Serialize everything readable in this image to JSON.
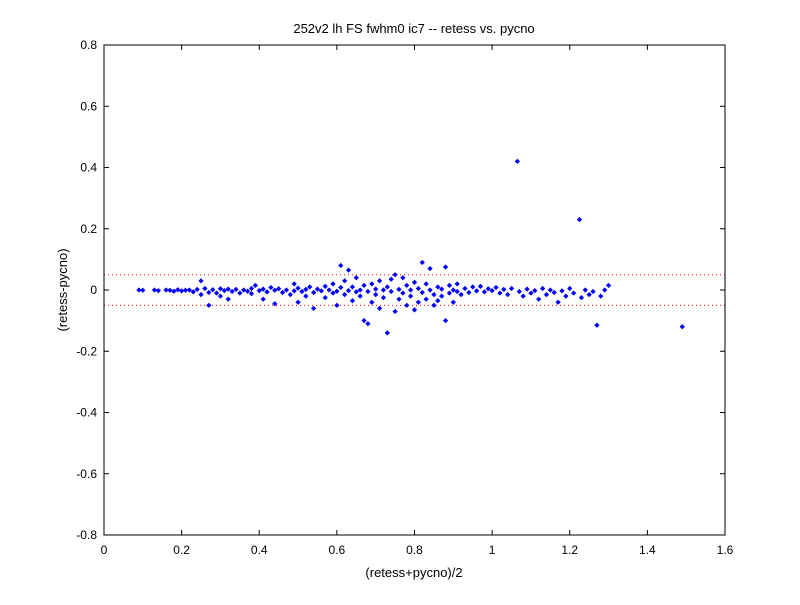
{
  "chart_data": {
    "type": "scatter",
    "title": "252v2 lh FS fwhm0 ic7 -- retess vs. pycno",
    "xlabel": "(retess+pycno)/2",
    "ylabel": "(retess-pycno)",
    "xlim": [
      0,
      1.6
    ],
    "ylim": [
      -0.8,
      0.8
    ],
    "x_ticks": [
      0,
      0.2,
      0.4,
      0.6,
      0.8,
      1,
      1.2,
      1.4,
      1.6
    ],
    "y_ticks": [
      -0.8,
      -0.6,
      -0.4,
      -0.2,
      0,
      0.2,
      0.4,
      0.6,
      0.8
    ],
    "x_tick_labels": [
      "0",
      "0.2",
      "0.4",
      "0.6",
      "0.8",
      "1",
      "1.2",
      "1.4",
      "1.6"
    ],
    "y_tick_labels": [
      "-0.8",
      "-0.6",
      "-0.4",
      "-0.2",
      "0",
      "0.2",
      "0.4",
      "0.6",
      "0.8"
    ],
    "grid": false,
    "legend": "none",
    "marker_color": "#0000ff",
    "reference_line_color": "#ff0000",
    "reference_lines_y": [
      0.05,
      -0.05
    ],
    "series": [
      {
        "points": [
          [
            0.09,
            0.0
          ],
          [
            0.1,
            -0.001
          ],
          [
            0.13,
            0.0
          ],
          [
            0.14,
            -0.002
          ],
          [
            0.16,
            0.0
          ],
          [
            0.17,
            -0.001
          ],
          [
            0.18,
            -0.004
          ],
          [
            0.19,
            0.001
          ],
          [
            0.2,
            -0.003
          ],
          [
            0.21,
            -0.001
          ],
          [
            0.22,
            0.0
          ],
          [
            0.23,
            -0.006
          ],
          [
            0.24,
            0.002
          ],
          [
            0.25,
            0.03
          ],
          [
            0.25,
            -0.015
          ],
          [
            0.26,
            0.005
          ],
          [
            0.27,
            -0.008
          ],
          [
            0.27,
            -0.05
          ],
          [
            0.28,
            0.001
          ],
          [
            0.29,
            -0.01
          ],
          [
            0.3,
            0.004
          ],
          [
            0.3,
            -0.02
          ],
          [
            0.31,
            -0.002
          ],
          [
            0.32,
            0.003
          ],
          [
            0.32,
            -0.03
          ],
          [
            0.33,
            -0.005
          ],
          [
            0.34,
            0.002
          ],
          [
            0.35,
            -0.01
          ],
          [
            0.36,
            0.0
          ],
          [
            0.37,
            -0.004
          ],
          [
            0.38,
            0.005
          ],
          [
            0.38,
            -0.012
          ],
          [
            0.39,
            0.015
          ],
          [
            0.4,
            -0.002
          ],
          [
            0.41,
            0.003
          ],
          [
            0.41,
            -0.03
          ],
          [
            0.42,
            -0.006
          ],
          [
            0.43,
            0.008
          ],
          [
            0.44,
            -0.001
          ],
          [
            0.44,
            -0.045
          ],
          [
            0.45,
            0.004
          ],
          [
            0.46,
            -0.008
          ],
          [
            0.47,
            0.0
          ],
          [
            0.48,
            -0.015
          ],
          [
            0.49,
            0.02
          ],
          [
            0.49,
            -0.003
          ],
          [
            0.5,
            0.006
          ],
          [
            0.5,
            -0.04
          ],
          [
            0.51,
            -0.005
          ],
          [
            0.52,
            0.002
          ],
          [
            0.52,
            -0.02
          ],
          [
            0.53,
            0.01
          ],
          [
            0.54,
            -0.008
          ],
          [
            0.54,
            -0.06
          ],
          [
            0.55,
            0.003
          ],
          [
            0.56,
            -0.003
          ],
          [
            0.57,
            0.012
          ],
          [
            0.57,
            -0.025
          ],
          [
            0.58,
            0.0
          ],
          [
            0.59,
            -0.01
          ],
          [
            0.59,
            0.02
          ],
          [
            0.6,
            -0.004
          ],
          [
            0.6,
            -0.05
          ],
          [
            0.61,
            0.08
          ],
          [
            0.61,
            0.008
          ],
          [
            0.62,
            -0.015
          ],
          [
            0.62,
            0.03
          ],
          [
            0.63,
            0.065
          ],
          [
            0.63,
            -0.002
          ],
          [
            0.64,
            0.01
          ],
          [
            0.64,
            -0.035
          ],
          [
            0.65,
            -0.006
          ],
          [
            0.65,
            0.04
          ],
          [
            0.66,
            0.0
          ],
          [
            0.66,
            -0.02
          ],
          [
            0.67,
            -0.1
          ],
          [
            0.67,
            0.015
          ],
          [
            0.68,
            -0.11
          ],
          [
            0.68,
            -0.005
          ],
          [
            0.69,
            0.02
          ],
          [
            0.69,
            -0.04
          ],
          [
            0.7,
            0.003
          ],
          [
            0.7,
            -0.015
          ],
          [
            0.71,
            0.03
          ],
          [
            0.71,
            -0.06
          ],
          [
            0.72,
            0.0
          ],
          [
            0.72,
            -0.025
          ],
          [
            0.73,
            0.01
          ],
          [
            0.73,
            -0.14
          ],
          [
            0.74,
            -0.005
          ],
          [
            0.74,
            0.035
          ],
          [
            0.75,
            0.05
          ],
          [
            0.75,
            -0.07
          ],
          [
            0.76,
            0.002
          ],
          [
            0.76,
            -0.03
          ],
          [
            0.77,
            0.04
          ],
          [
            0.77,
            -0.01
          ],
          [
            0.78,
            0.015
          ],
          [
            0.78,
            -0.05
          ],
          [
            0.79,
            0.0
          ],
          [
            0.79,
            -0.02
          ],
          [
            0.8,
            0.025
          ],
          [
            0.8,
            -0.065
          ],
          [
            0.81,
            0.005
          ],
          [
            0.81,
            -0.04
          ],
          [
            0.82,
            0.09
          ],
          [
            0.82,
            -0.008
          ],
          [
            0.83,
            0.02
          ],
          [
            0.83,
            -0.03
          ],
          [
            0.84,
            0.07
          ],
          [
            0.84,
            0.0
          ],
          [
            0.85,
            -0.015
          ],
          [
            0.85,
            -0.05
          ],
          [
            0.86,
            0.01
          ],
          [
            0.86,
            -0.035
          ],
          [
            0.87,
            0.003
          ],
          [
            0.87,
            -0.02
          ],
          [
            0.88,
            0.075
          ],
          [
            0.88,
            -0.1
          ],
          [
            0.89,
            0.015
          ],
          [
            0.89,
            -0.01
          ],
          [
            0.9,
            0.0
          ],
          [
            0.9,
            -0.04
          ],
          [
            0.91,
            0.02
          ],
          [
            0.91,
            -0.005
          ],
          [
            0.92,
            -0.015
          ],
          [
            0.93,
            0.005
          ],
          [
            0.94,
            -0.008
          ],
          [
            0.95,
            0.01
          ],
          [
            0.96,
            -0.003
          ],
          [
            0.97,
            0.012
          ],
          [
            0.98,
            -0.006
          ],
          [
            0.99,
            0.004
          ],
          [
            1.0,
            -0.002
          ],
          [
            1.01,
            0.008
          ],
          [
            1.02,
            -0.01
          ],
          [
            1.03,
            0.002
          ],
          [
            1.04,
            -0.015
          ],
          [
            1.05,
            0.005
          ],
          [
            1.065,
            0.42
          ],
          [
            1.07,
            -0.005
          ],
          [
            1.08,
            -0.02
          ],
          [
            1.09,
            0.003
          ],
          [
            1.1,
            -0.01
          ],
          [
            1.11,
            -0.002
          ],
          [
            1.12,
            -0.03
          ],
          [
            1.13,
            0.005
          ],
          [
            1.14,
            -0.015
          ],
          [
            1.15,
            0.0
          ],
          [
            1.16,
            -0.008
          ],
          [
            1.17,
            -0.04
          ],
          [
            1.18,
            -0.003
          ],
          [
            1.19,
            -0.02
          ],
          [
            1.2,
            0.005
          ],
          [
            1.21,
            -0.01
          ],
          [
            1.225,
            0.23
          ],
          [
            1.23,
            -0.025
          ],
          [
            1.24,
            0.0
          ],
          [
            1.25,
            -0.015
          ],
          [
            1.26,
            -0.005
          ],
          [
            1.27,
            -0.115
          ],
          [
            1.28,
            -0.02
          ],
          [
            1.29,
            0.0
          ],
          [
            1.3,
            0.015
          ],
          [
            1.49,
            -0.12
          ]
        ]
      }
    ]
  }
}
